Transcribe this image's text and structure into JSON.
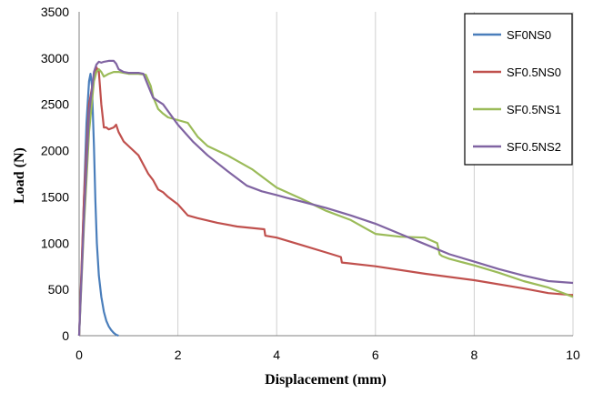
{
  "chart_data": {
    "type": "line",
    "title": "",
    "xlabel": "Displacement (mm)",
    "ylabel": "Load (N)",
    "xlim": [
      0,
      10
    ],
    "ylim": [
      0,
      3500
    ],
    "xticks": [
      "0",
      "2",
      "4",
      "6",
      "8",
      "10"
    ],
    "yticks": [
      "0",
      "500",
      "1000",
      "1500",
      "2000",
      "2500",
      "3000",
      "3500"
    ],
    "grid": "vertical",
    "legend_position": "top-right",
    "series": [
      {
        "name": "SF0NS0",
        "color": "#4a7ebb",
        "x": [
          0,
          0.05,
          0.1,
          0.15,
          0.2,
          0.23,
          0.26,
          0.3,
          0.33,
          0.36,
          0.4,
          0.45,
          0.5,
          0.55,
          0.6,
          0.65,
          0.7,
          0.75,
          0.8
        ],
        "y": [
          0,
          700,
          1500,
          2300,
          2750,
          2830,
          2700,
          2050,
          1450,
          1000,
          650,
          420,
          260,
          160,
          100,
          60,
          30,
          10,
          0
        ]
      },
      {
        "name": "SF0.5NS0",
        "color": "#c0504d",
        "x": [
          0,
          0.1,
          0.2,
          0.3,
          0.35,
          0.4,
          0.45,
          0.5,
          0.55,
          0.6,
          0.7,
          0.75,
          0.8,
          0.85,
          0.9,
          1.0,
          1.2,
          1.4,
          1.5,
          1.6,
          1.7,
          1.8,
          2.0,
          2.2,
          2.4,
          2.8,
          3.2,
          3.75,
          3.77,
          4.0,
          4.5,
          5.0,
          5.3,
          5.32,
          6.0,
          7.0,
          8.0,
          9.0,
          9.5,
          9.95,
          10.0
        ],
        "y": [
          0,
          1500,
          2500,
          2800,
          2900,
          2850,
          2500,
          2250,
          2250,
          2230,
          2250,
          2280,
          2200,
          2150,
          2100,
          2050,
          1950,
          1750,
          1680,
          1580,
          1550,
          1500,
          1420,
          1300,
          1270,
          1220,
          1180,
          1150,
          1080,
          1060,
          980,
          900,
          850,
          790,
          750,
          670,
          600,
          510,
          460,
          440,
          440
        ]
      },
      {
        "name": "SF0.5NS1",
        "color": "#9bbb59",
        "x": [
          0,
          0.1,
          0.2,
          0.3,
          0.35,
          0.4,
          0.45,
          0.5,
          0.6,
          0.7,
          0.8,
          1.0,
          1.2,
          1.35,
          1.45,
          1.5,
          1.6,
          1.7,
          1.8,
          2.0,
          2.2,
          2.4,
          2.6,
          3.0,
          3.5,
          4.0,
          4.5,
          5.0,
          5.5,
          6.0,
          6.5,
          7.0,
          7.25,
          7.3,
          7.35,
          7.5,
          8.0,
          8.5,
          9.0,
          9.5,
          9.8,
          10.0
        ],
        "y": [
          0,
          1200,
          2200,
          2750,
          2850,
          2880,
          2850,
          2800,
          2830,
          2850,
          2850,
          2830,
          2830,
          2820,
          2700,
          2580,
          2450,
          2400,
          2360,
          2330,
          2300,
          2150,
          2050,
          1950,
          1800,
          1600,
          1480,
          1350,
          1250,
          1100,
          1070,
          1060,
          1000,
          880,
          860,
          830,
          760,
          680,
          590,
          520,
          460,
          420
        ]
      },
      {
        "name": "SF0.5NS2",
        "color": "#8064a2",
        "x": [
          0,
          0.1,
          0.2,
          0.3,
          0.35,
          0.4,
          0.45,
          0.5,
          0.6,
          0.7,
          0.75,
          0.8,
          0.9,
          1.0,
          1.1,
          1.2,
          1.3,
          1.4,
          1.5,
          1.7,
          2.0,
          2.3,
          2.6,
          3.0,
          3.4,
          3.7,
          4.0,
          4.2,
          4.5,
          5.0,
          5.5,
          6.0,
          6.5,
          7.0,
          7.5,
          8.0,
          8.5,
          9.0,
          9.5,
          10.0
        ],
        "y": [
          0,
          1300,
          2400,
          2850,
          2930,
          2960,
          2950,
          2960,
          2970,
          2970,
          2940,
          2880,
          2850,
          2840,
          2840,
          2840,
          2830,
          2700,
          2570,
          2500,
          2280,
          2100,
          1950,
          1780,
          1620,
          1560,
          1520,
          1490,
          1450,
          1380,
          1300,
          1210,
          1100,
          990,
          880,
          800,
          720,
          650,
          590,
          570
        ]
      }
    ]
  }
}
